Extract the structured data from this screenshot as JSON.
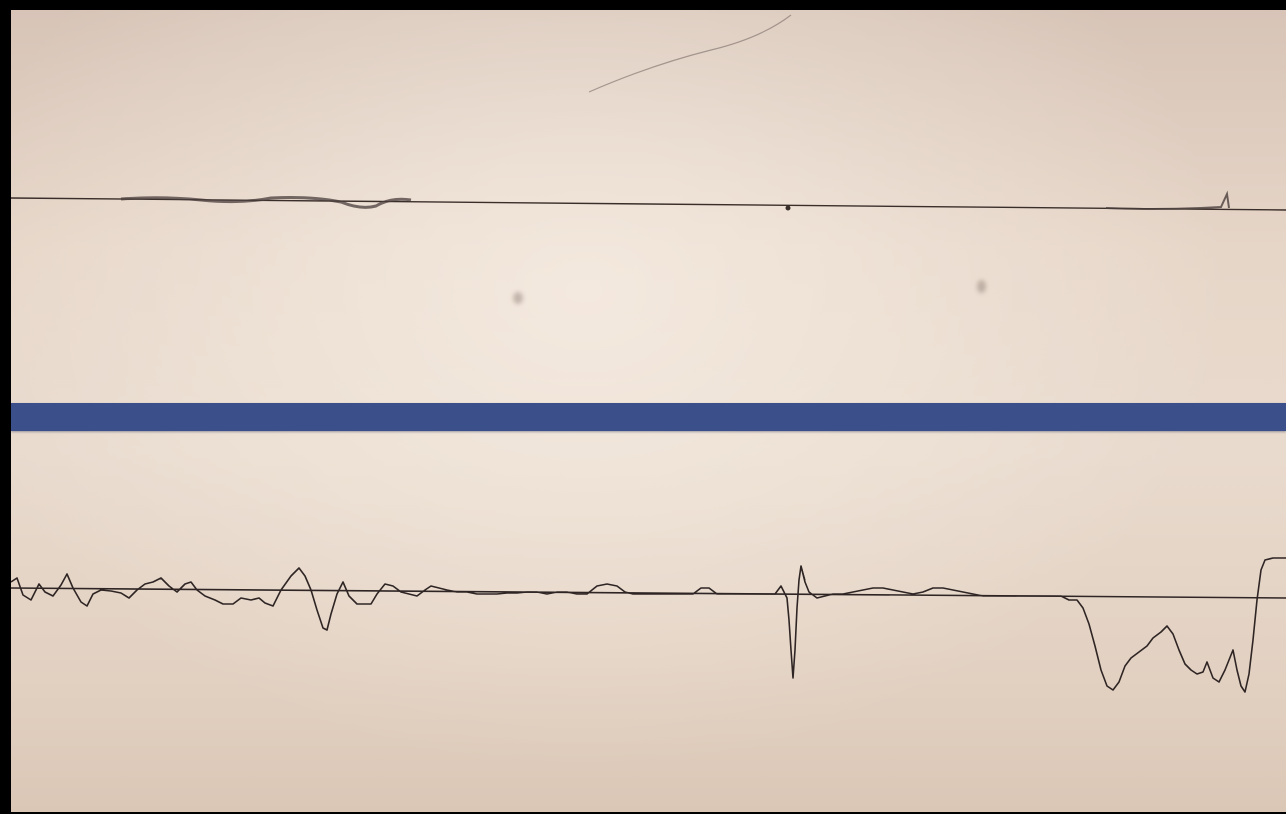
{
  "image": {
    "subject": "chart-recorder-paper-traces",
    "colors": {
      "paper": "#e6d6c8",
      "ink": "#3a2e2a",
      "band": "#3b4f8a"
    }
  }
}
